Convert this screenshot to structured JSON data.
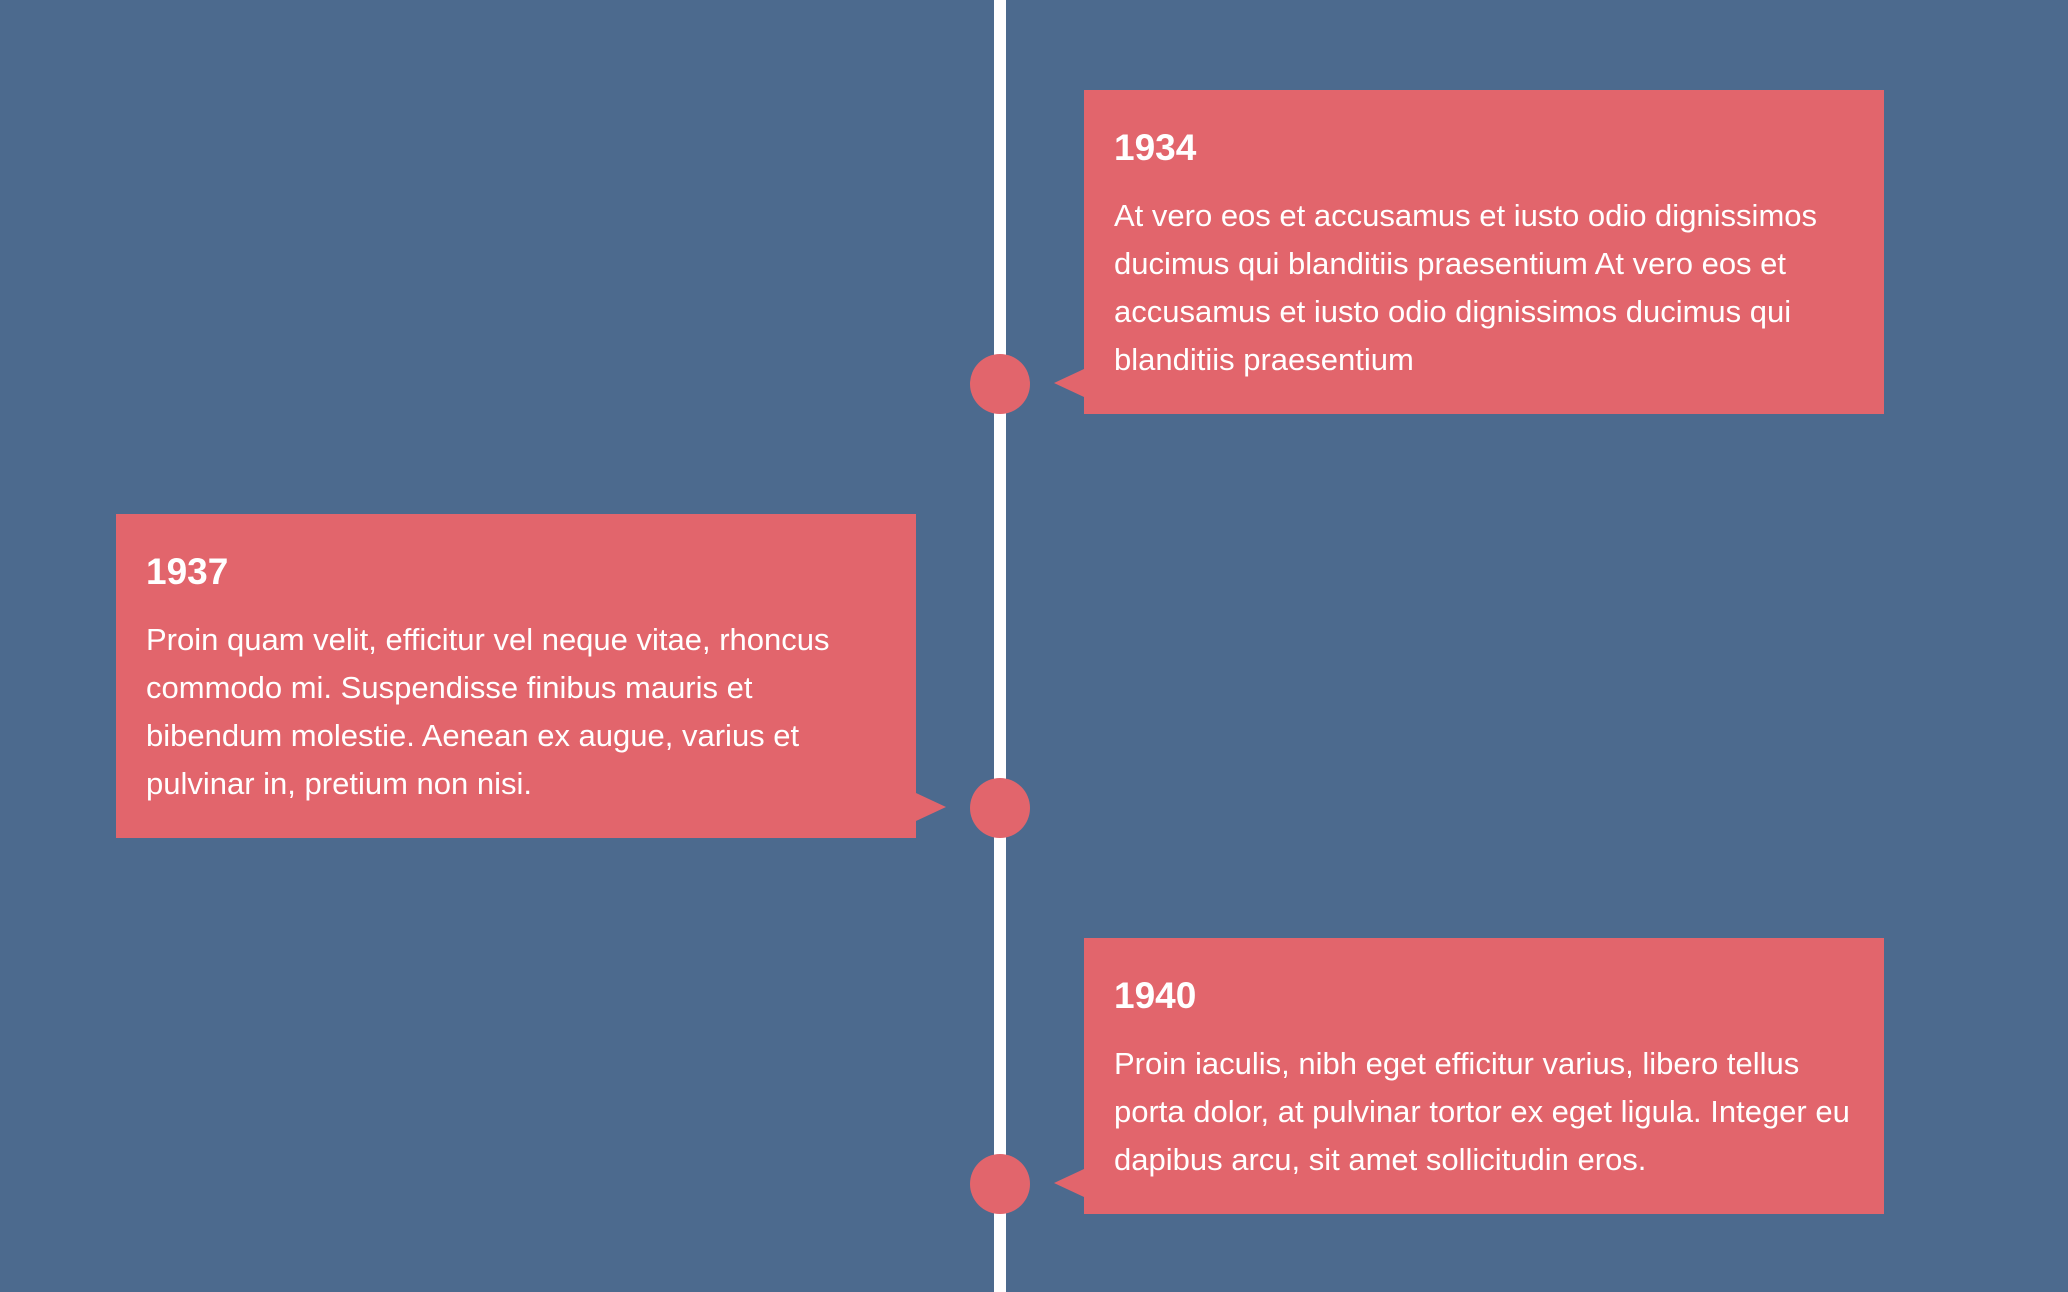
{
  "colors": {
    "background": "#4c6a8e",
    "accent": "#e2656c",
    "line": "#ffffff",
    "text": "#ffffff"
  },
  "events": [
    {
      "year": "1934",
      "text": "At vero eos et accusamus et iusto odio dignissimos ducimus qui blanditiis praesentium At vero eos et accusamus et iusto odio dignissimos ducimus qui blanditiis praesentium",
      "side": "right"
    },
    {
      "year": "1937",
      "text": "Proin quam velit, efficitur vel neque vitae, rhoncus commodo mi. Suspendisse finibus mauris et bibendum molestie. Aenean ex augue, varius et pulvinar in, pretium non nisi.",
      "side": "left"
    },
    {
      "year": "1940",
      "text": "Proin iaculis, nibh eget efficitur varius, libero tellus porta dolor, at pulvinar tortor ex eget ligula. Integer eu dapibus arcu, sit amet sollicitudin eros.",
      "side": "right"
    }
  ]
}
